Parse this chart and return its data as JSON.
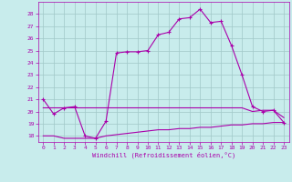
{
  "xlabel": "Windchill (Refroidissement éolien,°C)",
  "background_color": "#c8ecec",
  "grid_color": "#a0c8c8",
  "line_color": "#aa00aa",
  "x": [
    0,
    1,
    2,
    3,
    4,
    5,
    6,
    7,
    8,
    9,
    10,
    11,
    12,
    13,
    14,
    15,
    16,
    17,
    18,
    19,
    20,
    21,
    22,
    23
  ],
  "y_main": [
    21.0,
    19.8,
    20.3,
    20.4,
    18.0,
    17.8,
    19.2,
    24.8,
    24.9,
    24.9,
    25.0,
    26.3,
    26.5,
    27.6,
    27.7,
    28.4,
    27.3,
    27.4,
    25.4,
    23.0,
    20.4,
    20.0,
    20.1,
    19.1
  ],
  "y_flat1": [
    20.3,
    20.3,
    20.3,
    20.3,
    20.3,
    20.3,
    20.3,
    20.3,
    20.3,
    20.3,
    20.3,
    20.3,
    20.3,
    20.3,
    20.3,
    20.3,
    20.3,
    20.3,
    20.3,
    20.3,
    20.0,
    20.1,
    20.1,
    19.5
  ],
  "y_flat2": [
    18.0,
    18.0,
    17.8,
    17.8,
    17.8,
    17.8,
    18.0,
    18.1,
    18.2,
    18.3,
    18.4,
    18.5,
    18.5,
    18.6,
    18.6,
    18.7,
    18.7,
    18.8,
    18.9,
    18.9,
    19.0,
    19.0,
    19.1,
    19.1
  ],
  "ylim": [
    17.5,
    29.0
  ],
  "yticks": [
    18,
    19,
    20,
    21,
    22,
    23,
    24,
    25,
    26,
    27,
    28
  ],
  "xticks": [
    0,
    1,
    2,
    3,
    4,
    5,
    6,
    7,
    8,
    9,
    10,
    11,
    12,
    13,
    14,
    15,
    16,
    17,
    18,
    19,
    20,
    21,
    22,
    23
  ],
  "xlim": [
    -0.5,
    23.5
  ]
}
